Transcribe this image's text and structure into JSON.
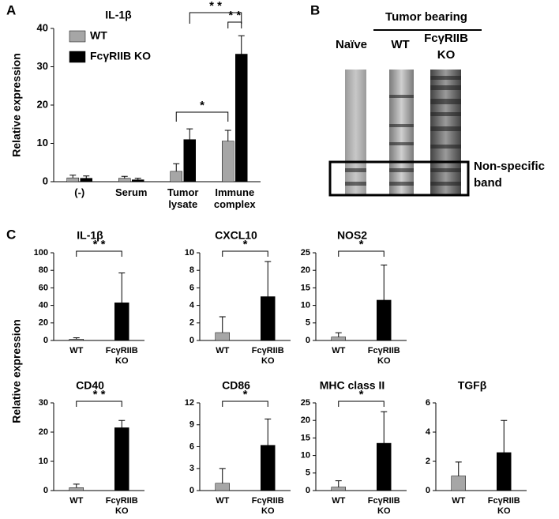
{
  "panel_labels": [
    "A",
    "B",
    "C"
  ],
  "shared_ylabel": "Relative expression",
  "blot": {
    "header": "Tumor bearing",
    "lanes": [
      "Naïve",
      "WT",
      "FcγRIIB KO"
    ],
    "box_label": "Non-specific band"
  },
  "chart_data": [
    {
      "type": "bar",
      "title": "IL-1β",
      "ylabel": "Relative expression",
      "categories": [
        "(-)",
        "Serum",
        "Tumor lysate",
        "Immune complex"
      ],
      "series": [
        {
          "name": "WT",
          "color": "#a6a6a6",
          "values": [
            1.0,
            0.9,
            2.7,
            10.6
          ],
          "errors": [
            0.7,
            0.5,
            2.0,
            2.8
          ]
        },
        {
          "name": "FcγRIIB KO",
          "color": "#000000",
          "values": [
            0.9,
            0.5,
            11,
            33.3
          ],
          "errors": [
            0.6,
            0.4,
            2.8,
            4.8
          ]
        }
      ],
      "ylim": [
        0,
        40
      ],
      "yticks": [
        0,
        10,
        20,
        30,
        40
      ],
      "annotations": [
        "* *",
        "* *",
        "*"
      ]
    },
    {
      "type": "bar",
      "title": "IL-1β",
      "categories": [
        "WT",
        "FcγRIIB KO"
      ],
      "colors": [
        "#a6a6a6",
        "#000000"
      ],
      "values": [
        1.5,
        43
      ],
      "errors": [
        1.5,
        34
      ],
      "ylim": [
        0,
        100
      ],
      "yticks": [
        0,
        20,
        40,
        60,
        80,
        100
      ],
      "annotations": [
        "* *"
      ]
    },
    {
      "type": "bar",
      "title": "CXCL10",
      "categories": [
        "WT",
        "FcγRIIB KO"
      ],
      "colors": [
        "#a6a6a6",
        "#000000"
      ],
      "values": [
        0.9,
        5.0
      ],
      "errors": [
        1.8,
        4.0
      ],
      "ylim": [
        0,
        10
      ],
      "yticks": [
        0,
        2,
        4,
        6,
        8,
        10
      ],
      "annotations": [
        "*"
      ]
    },
    {
      "type": "bar",
      "title": "NOS2",
      "categories": [
        "WT",
        "FcγRIIB KO"
      ],
      "colors": [
        "#a6a6a6",
        "#000000"
      ],
      "values": [
        1.0,
        11.5
      ],
      "errors": [
        1.2,
        10
      ],
      "ylim": [
        0,
        25
      ],
      "yticks": [
        0,
        5,
        10,
        15,
        20,
        25
      ],
      "annotations": [
        "*"
      ]
    },
    {
      "type": "bar",
      "title": "CD40",
      "categories": [
        "WT",
        "FcγRIIB KO"
      ],
      "colors": [
        "#a6a6a6",
        "#000000"
      ],
      "values": [
        1.0,
        21.5
      ],
      "errors": [
        1.2,
        2.5
      ],
      "ylim": [
        0,
        30
      ],
      "yticks": [
        0,
        10,
        20,
        30
      ],
      "annotations": [
        "* *"
      ]
    },
    {
      "type": "bar",
      "title": "CD86",
      "categories": [
        "WT",
        "FcγRIIB KO"
      ],
      "colors": [
        "#a6a6a6",
        "#000000"
      ],
      "values": [
        1.0,
        6.2
      ],
      "errors": [
        2.0,
        3.6
      ],
      "ylim": [
        0,
        12
      ],
      "yticks": [
        0,
        3,
        6,
        9,
        12
      ],
      "annotations": [
        "*"
      ]
    },
    {
      "type": "bar",
      "title": "MHC class II",
      "categories": [
        "WT",
        "FcγRIIB KO"
      ],
      "colors": [
        "#a6a6a6",
        "#000000"
      ],
      "values": [
        1.0,
        13.5
      ],
      "errors": [
        1.8,
        9
      ],
      "ylim": [
        0,
        25
      ],
      "yticks": [
        0,
        5,
        10,
        15,
        20,
        25
      ],
      "annotations": [
        "*"
      ]
    },
    {
      "type": "bar",
      "title": "TGFβ",
      "categories": [
        "WT",
        "FcγRIIB KO"
      ],
      "colors": [
        "#a6a6a6",
        "#000000"
      ],
      "values": [
        1.0,
        2.6
      ],
      "errors": [
        0.95,
        2.2
      ],
      "ylim": [
        0,
        6
      ],
      "yticks": [
        0,
        2,
        4,
        6
      ],
      "annotations": []
    }
  ]
}
